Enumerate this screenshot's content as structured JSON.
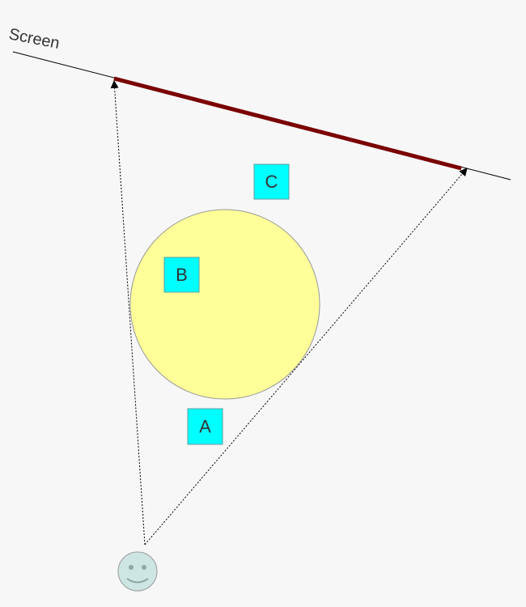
{
  "diagram": {
    "screen_label": "Screen",
    "labels": {
      "a": "A",
      "b": "B",
      "c": "C"
    }
  },
  "colors": {
    "background": "#f7f7f7",
    "screen_line": "#000000",
    "screen_segment": "#7a0000",
    "circle_fill": "#ffff99",
    "circle_stroke": "#999999",
    "label_box_fill": "#00ffff",
    "label_box_stroke": "#5f9ea0",
    "viewer_fill": "#cde6e3",
    "viewer_stroke": "#999999"
  },
  "icons": {
    "viewer": "smiley-face-icon"
  }
}
